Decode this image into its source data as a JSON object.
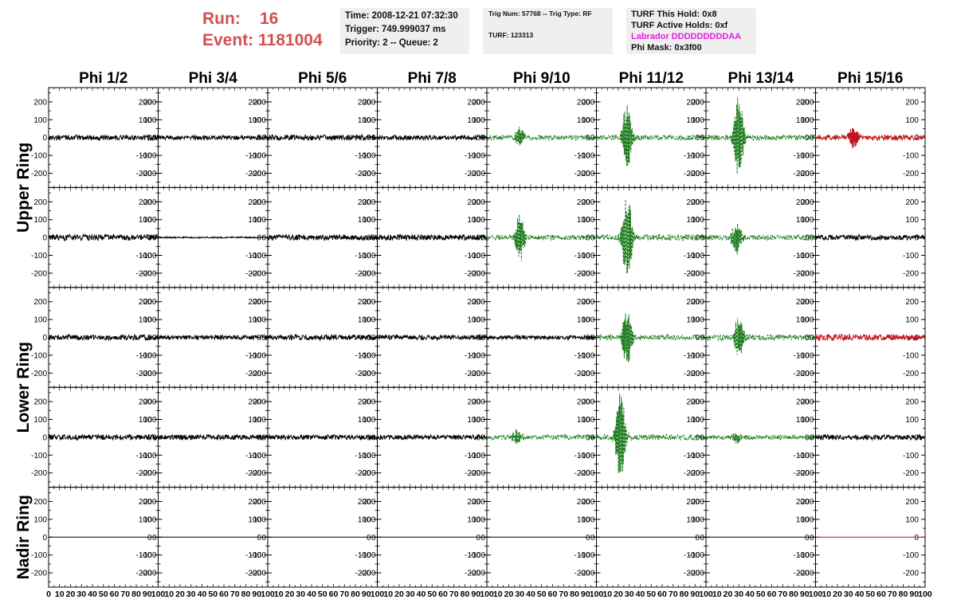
{
  "header": {
    "run_label": "Run:",
    "run_value": "16",
    "event_label": "Event:",
    "event_value": "1181004",
    "time": "Time: 2008-12-21 07:32:30",
    "trigger": "Trigger: 749.999037 ms",
    "priority": "Priority: 2 -- Queue: 2",
    "trig_num": "Trig Num: 57768 -- Trig Type: RF",
    "turf": "TURF: 123313",
    "turf_hold": "TURF This Hold: 0x8",
    "turf_active": "TURF Active Holds: 0xf",
    "labrador": "Labrador DDDDDDDDDAA",
    "phi_mask": "Phi Mask: 0x3f00"
  },
  "colors": {
    "run_text": "#d35050",
    "labrador_text": "#e020e0",
    "trace_normal": "#000000",
    "trace_triggered": "#1a7a1a",
    "trace_masked": "#c0141e",
    "info_box_bg": "#efefef"
  },
  "chart_data": {
    "type": "line",
    "columns": [
      "Phi 1/2",
      "Phi 3/4",
      "Phi 5/6",
      "Phi 7/8",
      "Phi 9/10",
      "Phi 11/12",
      "Phi 13/14",
      "Phi 15/16"
    ],
    "rows": [
      "Upper Ring",
      "Upper Ring",
      "Lower Ring",
      "Lower Ring",
      "Nadir Ring"
    ],
    "row_titles": [
      "Upper Ring",
      "Lower Ring",
      "Nadir Ring"
    ],
    "xlim": [
      0,
      100
    ],
    "ylim": [
      -280,
      280
    ],
    "yticks": [
      -200,
      -100,
      0,
      100,
      200
    ],
    "xticks": [
      0,
      10,
      20,
      30,
      40,
      50,
      60,
      70,
      80,
      90,
      100
    ],
    "series": [
      {
        "panel": "r0c0",
        "style": "normal",
        "noise_amp": 14,
        "pulse_center": 0,
        "pulse_amp": 0
      },
      {
        "panel": "r0c1",
        "style": "normal",
        "noise_amp": 12,
        "pulse_center": 0,
        "pulse_amp": 0
      },
      {
        "panel": "r0c2",
        "style": "normal",
        "noise_amp": 15,
        "pulse_center": 0,
        "pulse_amp": 0
      },
      {
        "panel": "r0c3",
        "style": "normal",
        "noise_amp": 13,
        "pulse_center": 0,
        "pulse_amp": 0
      },
      {
        "panel": "r0c4",
        "style": "triggered",
        "noise_amp": 14,
        "pulse_center": 30,
        "pulse_amp": 55
      },
      {
        "panel": "r0c5",
        "style": "triggered",
        "noise_amp": 14,
        "pulse_center": 28,
        "pulse_amp": 200
      },
      {
        "panel": "r0c6",
        "style": "triggered",
        "noise_amp": 14,
        "pulse_center": 30,
        "pulse_amp": 250
      },
      {
        "panel": "r0c7",
        "style": "masked",
        "noise_amp": 15,
        "pulse_center": 35,
        "pulse_amp": 60
      },
      {
        "panel": "r1c0",
        "style": "normal",
        "noise_amp": 16,
        "pulse_center": 0,
        "pulse_amp": 0
      },
      {
        "panel": "r1c1",
        "style": "normal",
        "noise_amp": 4,
        "pulse_center": 0,
        "pulse_amp": 0
      },
      {
        "panel": "r1c2",
        "style": "normal",
        "noise_amp": 15,
        "pulse_center": 0,
        "pulse_amp": 0
      },
      {
        "panel": "r1c3",
        "style": "normal",
        "noise_amp": 16,
        "pulse_center": 0,
        "pulse_amp": 0
      },
      {
        "panel": "r1c4",
        "style": "triggered",
        "noise_amp": 14,
        "pulse_center": 30,
        "pulse_amp": 140
      },
      {
        "panel": "r1c5",
        "style": "triggered",
        "noise_amp": 18,
        "pulse_center": 28,
        "pulse_amp": 260
      },
      {
        "panel": "r1c6",
        "style": "triggered",
        "noise_amp": 14,
        "pulse_center": 28,
        "pulse_amp": 90
      },
      {
        "panel": "r1c7",
        "style": "normal",
        "noise_amp": 14,
        "pulse_center": 0,
        "pulse_amp": 0
      },
      {
        "panel": "r2c0",
        "style": "normal",
        "noise_amp": 15,
        "pulse_center": 0,
        "pulse_amp": 0
      },
      {
        "panel": "r2c1",
        "style": "normal",
        "noise_amp": 12,
        "pulse_center": 0,
        "pulse_amp": 0
      },
      {
        "panel": "r2c2",
        "style": "normal",
        "noise_amp": 15,
        "pulse_center": 0,
        "pulse_amp": 0
      },
      {
        "panel": "r2c3",
        "style": "normal",
        "noise_amp": 13,
        "pulse_center": 0,
        "pulse_amp": 0
      },
      {
        "panel": "r2c4",
        "style": "normal",
        "noise_amp": 11,
        "pulse_center": 0,
        "pulse_amp": 0
      },
      {
        "panel": "r2c5",
        "style": "triggered",
        "noise_amp": 14,
        "pulse_center": 28,
        "pulse_amp": 170
      },
      {
        "panel": "r2c6",
        "style": "triggered",
        "noise_amp": 16,
        "pulse_center": 30,
        "pulse_amp": 110
      },
      {
        "panel": "r2c7",
        "style": "masked",
        "noise_amp": 17,
        "pulse_center": 0,
        "pulse_amp": 0
      },
      {
        "panel": "r3c0",
        "style": "normal",
        "noise_amp": 15,
        "pulse_center": 0,
        "pulse_amp": 0
      },
      {
        "panel": "r3c1",
        "style": "normal",
        "noise_amp": 14,
        "pulse_center": 0,
        "pulse_amp": 0
      },
      {
        "panel": "r3c2",
        "style": "normal",
        "noise_amp": 14,
        "pulse_center": 0,
        "pulse_amp": 0
      },
      {
        "panel": "r3c3",
        "style": "normal",
        "noise_amp": 13,
        "pulse_center": 0,
        "pulse_amp": 0
      },
      {
        "panel": "r3c4",
        "style": "triggered",
        "noise_amp": 13,
        "pulse_center": 28,
        "pulse_amp": 40
      },
      {
        "panel": "r3c5",
        "style": "triggered",
        "noise_amp": 16,
        "pulse_center": 22,
        "pulse_amp": 260
      },
      {
        "panel": "r3c6",
        "style": "triggered",
        "noise_amp": 13,
        "pulse_center": 28,
        "pulse_amp": 30
      },
      {
        "panel": "r3c7",
        "style": "normal",
        "noise_amp": 15,
        "pulse_center": 0,
        "pulse_amp": 0
      },
      {
        "panel": "r4c0",
        "style": "flat",
        "noise_amp": 0,
        "pulse_center": 0,
        "pulse_amp": 0
      },
      {
        "panel": "r4c1",
        "style": "flat",
        "noise_amp": 0,
        "pulse_center": 0,
        "pulse_amp": 0
      },
      {
        "panel": "r4c2",
        "style": "flat",
        "noise_amp": 0,
        "pulse_center": 0,
        "pulse_amp": 0
      },
      {
        "panel": "r4c3",
        "style": "flat",
        "noise_amp": 0,
        "pulse_center": 0,
        "pulse_amp": 0
      },
      {
        "panel": "r4c4",
        "style": "flat",
        "noise_amp": 0,
        "pulse_center": 0,
        "pulse_amp": 0
      },
      {
        "panel": "r4c5",
        "style": "flat",
        "noise_amp": 0,
        "pulse_center": 0,
        "pulse_amp": 0
      },
      {
        "panel": "r4c6",
        "style": "flat",
        "noise_amp": 0,
        "pulse_center": 0,
        "pulse_amp": 0
      },
      {
        "panel": "r4c7",
        "style": "flat-masked",
        "noise_amp": 0,
        "pulse_center": 0,
        "pulse_amp": 0
      }
    ]
  }
}
